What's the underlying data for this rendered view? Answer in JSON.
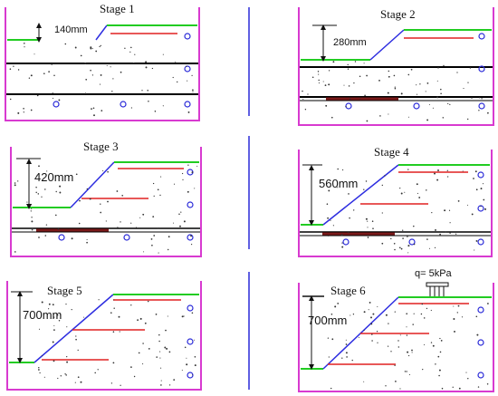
{
  "figure": {
    "stages": [
      {
        "title": "Stage 1",
        "height_label": "140mm",
        "reinforcement_layers": 1
      },
      {
        "title": "Stage 2",
        "height_label": "280mm",
        "reinforcement_layers": 1
      },
      {
        "title": "Stage 3",
        "height_label": "420mm",
        "reinforcement_layers": 2
      },
      {
        "title": "Stage 4",
        "height_label": "560mm",
        "reinforcement_layers": 2
      },
      {
        "title": "Stage 5",
        "height_label": "700mm",
        "reinforcement_layers": 3
      },
      {
        "title": "Stage 6",
        "height_label": "700mm",
        "reinforcement_layers": 3,
        "load_label": "q= 5kPa"
      }
    ],
    "colors": {
      "container": "#d83ad0",
      "slope_face": "#2d2de0",
      "crest_surface": "#22cc22",
      "reinforcement": "#e02020",
      "divider": "#2a2ad8",
      "sensor": "#2a2ad8",
      "layer_line": "#000000",
      "base_strip": "#7a1a1a"
    }
  }
}
